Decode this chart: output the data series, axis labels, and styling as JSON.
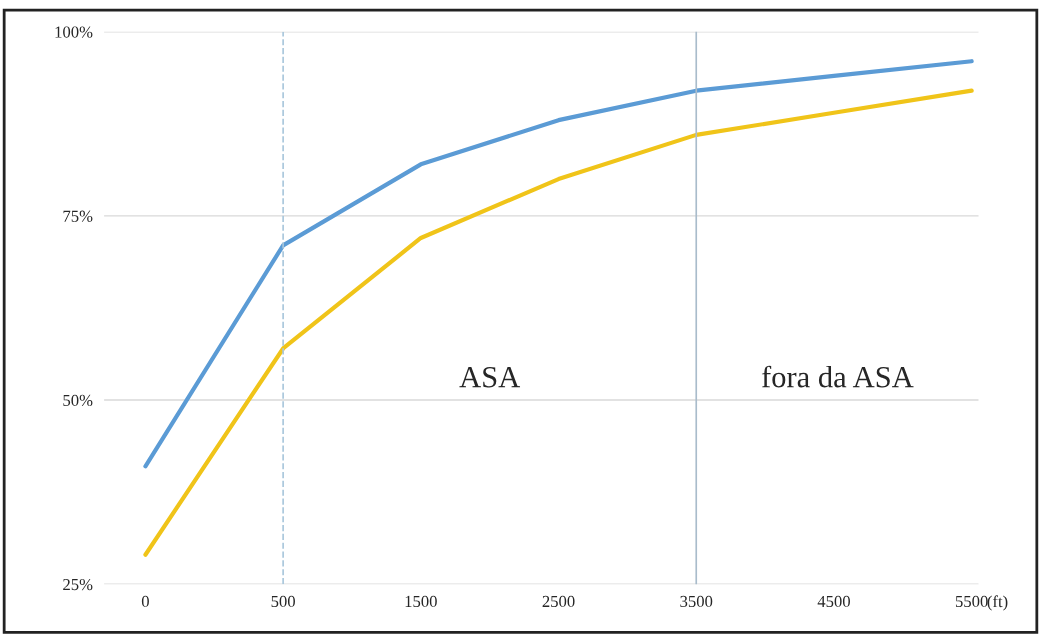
{
  "chart_data": {
    "type": "line",
    "xlabel": "(ft)",
    "categories": [
      "0",
      "500",
      "1500",
      "2500",
      "3500",
      "4500",
      "5500"
    ],
    "series": [
      {
        "color": "#5b9bd5",
        "values": [
          41,
          71,
          82,
          88,
          92,
          94,
          96
        ]
      },
      {
        "color": "#f0c419",
        "values": [
          29,
          57,
          72,
          80,
          86,
          89,
          92
        ]
      }
    ],
    "ylim": [
      25,
      100
    ],
    "yticks": [
      {
        "value": 25,
        "label": "25%"
      },
      {
        "value": 50,
        "label": "50%"
      },
      {
        "value": 75,
        "label": "75%"
      },
      {
        "value": 100,
        "label": "100%"
      }
    ],
    "grid": "y",
    "marker": "none",
    "line_style": "solid",
    "ref_lines": [
      {
        "axis": "x",
        "value": "500",
        "color": "#a9c7dc",
        "line_style": "dashed"
      },
      {
        "axis": "x",
        "value": "3500",
        "color": "#a9bccb",
        "line_style": "solid"
      }
    ],
    "annotations": [
      "ASA",
      "fora da ASA"
    ]
  }
}
